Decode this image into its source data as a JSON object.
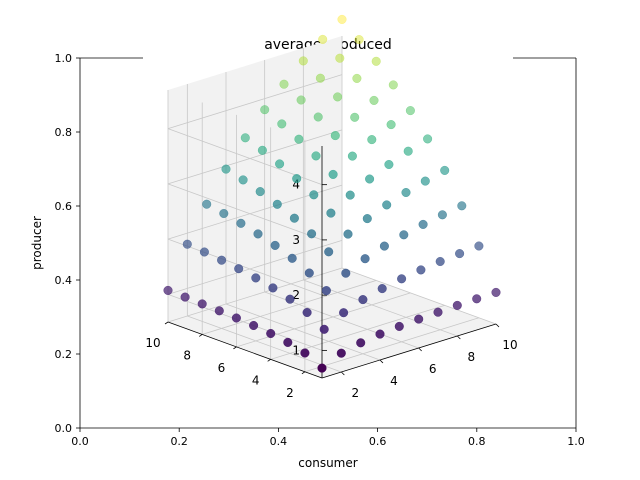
{
  "chart_data": {
    "type": "scatter",
    "projection": "3d",
    "title": "average produced",
    "outer_axes": {
      "xlabel": "consumer",
      "ylabel": "producer",
      "xlim": [
        0,
        1
      ],
      "ylim": [
        0,
        1
      ],
      "xticks": [
        "0.0",
        "0.2",
        "0.4",
        "0.6",
        "0.8",
        "1.0"
      ],
      "yticks": [
        "0.0",
        "0.2",
        "0.4",
        "0.6",
        "0.8",
        "1.0"
      ]
    },
    "axis3d": {
      "x_range": [
        1,
        10
      ],
      "y_range": [
        1,
        10
      ],
      "z_range": [
        0.5,
        4.7
      ],
      "xticks": [
        "2",
        "4",
        "6",
        "8",
        "10"
      ],
      "yticks": [
        "2",
        "4",
        "6",
        "8",
        "10"
      ],
      "zticks": [
        "1",
        "2",
        "3",
        "4"
      ],
      "grid": true,
      "colormap": "viridis",
      "z_formula": "z = x*y/(x+y) * 4.8/5 + 0.2, sampled on a 10x10 grid of x,y in 1..10"
    }
  }
}
